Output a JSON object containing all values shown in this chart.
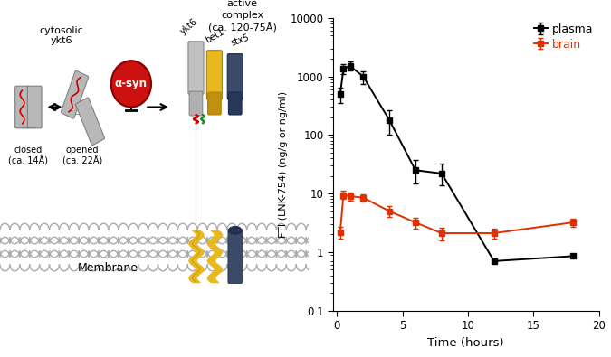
{
  "plasma_x": [
    0.25,
    0.5,
    1,
    2,
    4,
    6,
    8,
    12,
    18
  ],
  "plasma_y": [
    500,
    1350,
    1500,
    1000,
    180,
    25,
    22,
    0.7,
    0.85
  ],
  "plasma_yerr_low": [
    150,
    250,
    250,
    250,
    80,
    10,
    8,
    0.0,
    0.0
  ],
  "plasma_yerr_high": [
    150,
    250,
    300,
    200,
    80,
    12,
    10,
    0.0,
    0.0
  ],
  "brain_x": [
    0.25,
    0.5,
    1,
    2,
    4,
    6,
    8,
    12,
    18
  ],
  "brain_y": [
    2.2,
    9.5,
    9.0,
    8.5,
    5.0,
    3.2,
    2.1,
    2.1,
    3.2
  ],
  "brain_yerr_low": [
    0.5,
    1.5,
    1.5,
    1.2,
    1.0,
    0.7,
    0.5,
    0.4,
    0.5
  ],
  "brain_yerr_high": [
    0.5,
    1.5,
    1.5,
    1.2,
    1.0,
    0.7,
    0.5,
    0.4,
    0.5
  ],
  "plasma_color": "#000000",
  "brain_color": "#e03000",
  "xlabel": "Time (hours)",
  "ylabel": "FTI (LNK-754) (ng/g or ng/ml)",
  "ylim_log": [
    0.1,
    10000
  ],
  "xlim": [
    -0.3,
    20
  ],
  "xticks": [
    0,
    5,
    10,
    15,
    20
  ],
  "yticks_log": [
    0.1,
    1,
    10,
    100,
    1000,
    10000
  ],
  "yticklabels": [
    "0.1",
    "1",
    "10",
    "100",
    "1000",
    "10000"
  ],
  "legend_plasma": "plasma",
  "legend_brain": "brain",
  "bg_color": "#ffffff",
  "mem_color": "#aaaaaa",
  "cyl_gray": "#b8b8b8",
  "cyl_gold": "#e8b820",
  "cyl_dark": "#3a4a68",
  "red_color": "#cc0000",
  "alpha_syn_color": "#cc1111"
}
